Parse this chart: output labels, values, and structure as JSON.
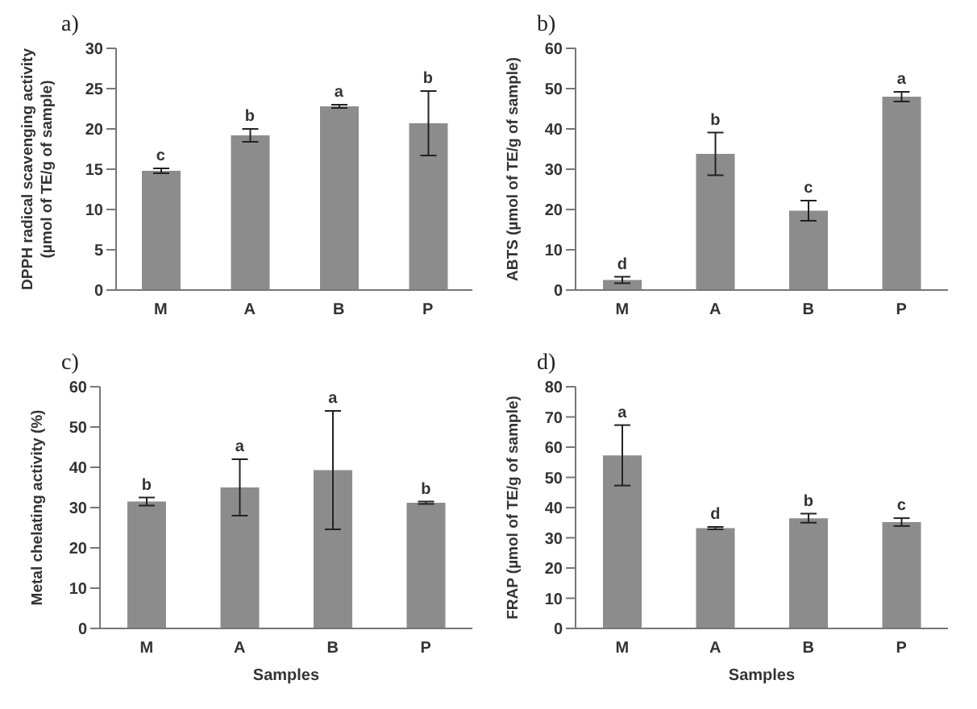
{
  "chart_data": [
    {
      "type": "bar",
      "title": "a)",
      "ylabel": "DPPH radical scavenging activity (µmol of TE/g of sample)",
      "categories": [
        "M",
        "A",
        "B",
        "P"
      ],
      "values": [
        14.8,
        19.2,
        22.8,
        20.7
      ],
      "errors": [
        0.3,
        0.8,
        0.2,
        4.0
      ],
      "color": "#8c8c8c",
      "ylim": [
        0,
        30
      ],
      "yticks": [
        0,
        5,
        10,
        15,
        20,
        25,
        30
      ],
      "grid": false,
      "legend": false,
      "annotations": [
        {
          "text": "c",
          "x": "M",
          "y": 15.1
        },
        {
          "text": "b",
          "x": "A",
          "y": 20
        },
        {
          "text": "a",
          "x": "B",
          "y": 23
        },
        {
          "text": "b",
          "x": "P",
          "y": 24.7
        }
      ]
    },
    {
      "type": "bar",
      "title": "b)",
      "ylabel": "ABTS (µmol of TE/g of sample)",
      "categories": [
        "M",
        "A",
        "B",
        "P"
      ],
      "values": [
        2.5,
        33.8,
        19.7,
        48
      ],
      "errors": [
        0.8,
        5.3,
        2.5,
        1.2
      ],
      "color": "#8c8c8c",
      "ylim": [
        0,
        60
      ],
      "yticks": [
        0,
        10,
        20,
        30,
        40,
        50,
        60
      ],
      "grid": false,
      "legend": false,
      "annotations": [
        {
          "text": "d",
          "x": "M",
          "y": 3.3
        },
        {
          "text": "b",
          "x": "A",
          "y": 39.1
        },
        {
          "text": "c",
          "x": "B",
          "y": 22.2
        },
        {
          "text": "a",
          "x": "P",
          "y": 49.2
        }
      ]
    },
    {
      "type": "bar",
      "title": "c)",
      "xlabel": "Samples",
      "ylabel": "Metal chelating activity (%)",
      "categories": [
        "M",
        "A",
        "B",
        "P"
      ],
      "values": [
        31.5,
        35,
        39.3,
        31.2
      ],
      "errors": [
        1,
        7,
        14.7,
        0.3
      ],
      "color": "#8c8c8c",
      "ylim": [
        0,
        60
      ],
      "yticks": [
        0,
        10,
        20,
        30,
        40,
        50,
        60
      ],
      "grid": false,
      "legend": false,
      "annotations": [
        {
          "text": "b",
          "x": "M",
          "y": 32.5
        },
        {
          "text": "a",
          "x": "A",
          "y": 42
        },
        {
          "text": "a",
          "x": "B",
          "y": 54
        },
        {
          "text": "b",
          "x": "P",
          "y": 31.5
        }
      ]
    },
    {
      "type": "bar",
      "title": "d)",
      "xlabel": "Samples",
      "ylabel": "FRAP (µmol of TE/g of sample)",
      "categories": [
        "M",
        "A",
        "B",
        "P"
      ],
      "values": [
        57.3,
        33.2,
        36.5,
        35.2
      ],
      "errors": [
        10,
        0.4,
        1.5,
        1.3
      ],
      "color": "#8c8c8c",
      "ylim": [
        0,
        80
      ],
      "yticks": [
        0,
        10,
        20,
        30,
        40,
        50,
        60,
        70,
        80
      ],
      "grid": false,
      "legend": false,
      "annotations": [
        {
          "text": "a",
          "x": "M",
          "y": 67.3
        },
        {
          "text": "d",
          "x": "A",
          "y": 33.6
        },
        {
          "text": "b",
          "x": "B",
          "y": 38
        },
        {
          "text": "c",
          "x": "P",
          "y": 36.5
        }
      ]
    }
  ]
}
